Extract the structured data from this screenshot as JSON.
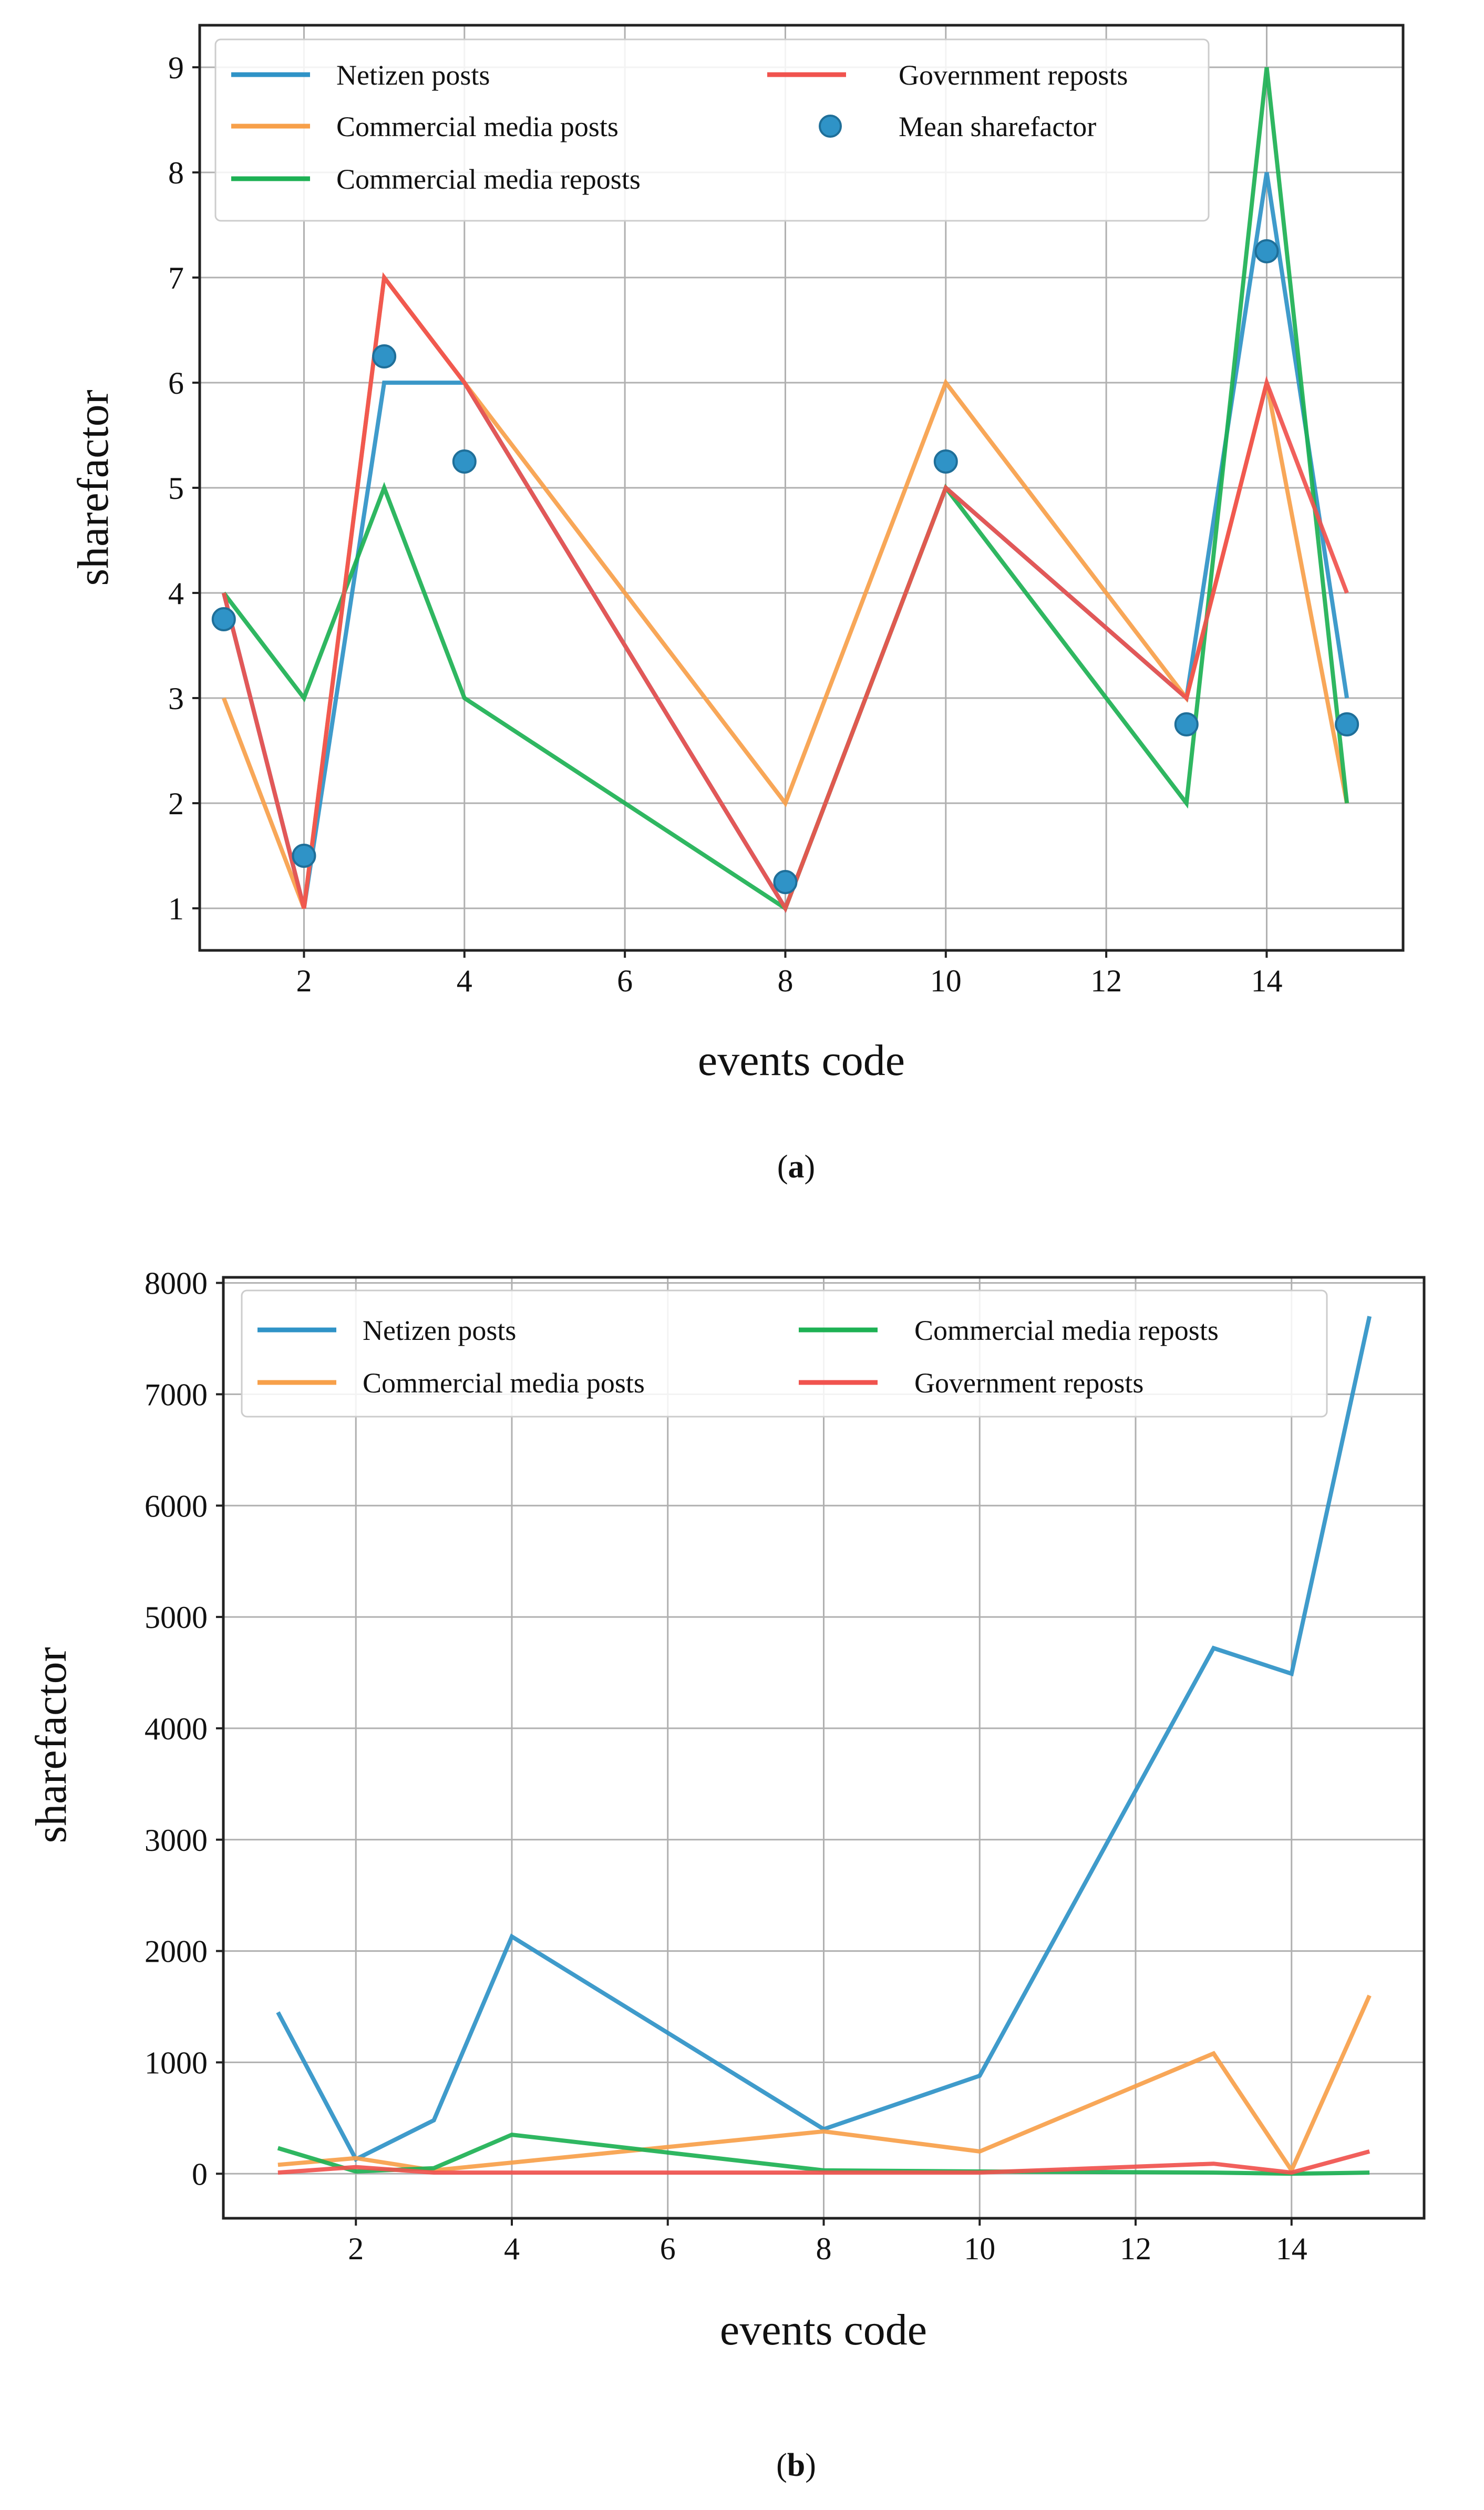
{
  "colors": {
    "netizen": "#2f93c7",
    "commercial_posts": "#f7a04a",
    "commercial_reposts": "#1db154",
    "government": "#f0534e",
    "grid": "#b0b0b0",
    "axis": "#222222"
  },
  "chart_data": [
    {
      "type": "line",
      "panel": "(a)",
      "label_pre": "(",
      "label_bold": "a",
      "label_post": ")",
      "xlabel": "events code",
      "ylabel": "sharefactor",
      "xlim": [
        0.7,
        15.7
      ],
      "ylim": [
        0.6,
        9.4
      ],
      "xticks": [
        2,
        4,
        6,
        8,
        10,
        12,
        14
      ],
      "yticks": [
        1,
        2,
        3,
        4,
        5,
        6,
        7,
        8,
        9
      ],
      "grid": true,
      "legend_position": "top",
      "x": [
        1,
        2,
        3,
        4,
        8,
        10,
        13,
        14,
        15
      ],
      "series": [
        {
          "key": "netizen",
          "name": "Netizen posts",
          "kind": "line",
          "values": [
            4,
            1,
            6,
            6,
            1,
            5,
            3,
            8,
            3
          ]
        },
        {
          "key": "commercial_posts",
          "name": "Commercial media posts",
          "kind": "line",
          "values": [
            3,
            1,
            7,
            6,
            2,
            6,
            3,
            6,
            2
          ]
        },
        {
          "key": "commercial_reposts",
          "name": "Commercial media reposts",
          "kind": "line",
          "values": [
            4,
            3,
            5,
            3,
            1,
            5,
            2,
            9,
            2
          ]
        },
        {
          "key": "government",
          "name": "Government reposts",
          "kind": "line",
          "values": [
            4,
            1,
            7,
            6,
            1,
            5,
            3,
            6,
            4
          ]
        },
        {
          "key": "netizen",
          "name": "Mean sharefactor",
          "kind": "scatter",
          "values": [
            3.75,
            1.5,
            6.25,
            5.25,
            1.25,
            5.25,
            2.75,
            7.25,
            2.75
          ]
        }
      ]
    },
    {
      "type": "line",
      "panel": "(b)",
      "label_pre": "(",
      "label_bold": "b",
      "label_post": ")",
      "xlabel": "events code",
      "ylabel": "sharefactor",
      "xlim": [
        0.3,
        15.7
      ],
      "ylim": [
        -400,
        8050
      ],
      "xticks": [
        2,
        4,
        6,
        8,
        10,
        12,
        14
      ],
      "yticks": [
        0,
        1000,
        2000,
        3000,
        4000,
        5000,
        6000,
        7000,
        8000
      ],
      "grid": true,
      "legend_position": "top",
      "x": [
        1,
        2,
        3,
        4,
        8,
        10,
        13,
        14,
        15
      ],
      "series": [
        {
          "key": "netizen",
          "name": "Netizen posts",
          "kind": "line",
          "values": [
            1450,
            130,
            480,
            2130,
            400,
            880,
            4720,
            4490,
            7700
          ]
        },
        {
          "key": "commercial_posts",
          "name": "Commercial media posts",
          "kind": "line",
          "values": [
            80,
            140,
            30,
            100,
            380,
            200,
            1080,
            30,
            1600
          ]
        },
        {
          "key": "commercial_reposts",
          "name": "Commercial media reposts",
          "kind": "line",
          "values": [
            230,
            20,
            50,
            350,
            30,
            20,
            10,
            0,
            10
          ]
        },
        {
          "key": "government",
          "name": "Government reposts",
          "kind": "line",
          "values": [
            10,
            60,
            10,
            10,
            10,
            10,
            90,
            10,
            200
          ]
        }
      ]
    }
  ]
}
